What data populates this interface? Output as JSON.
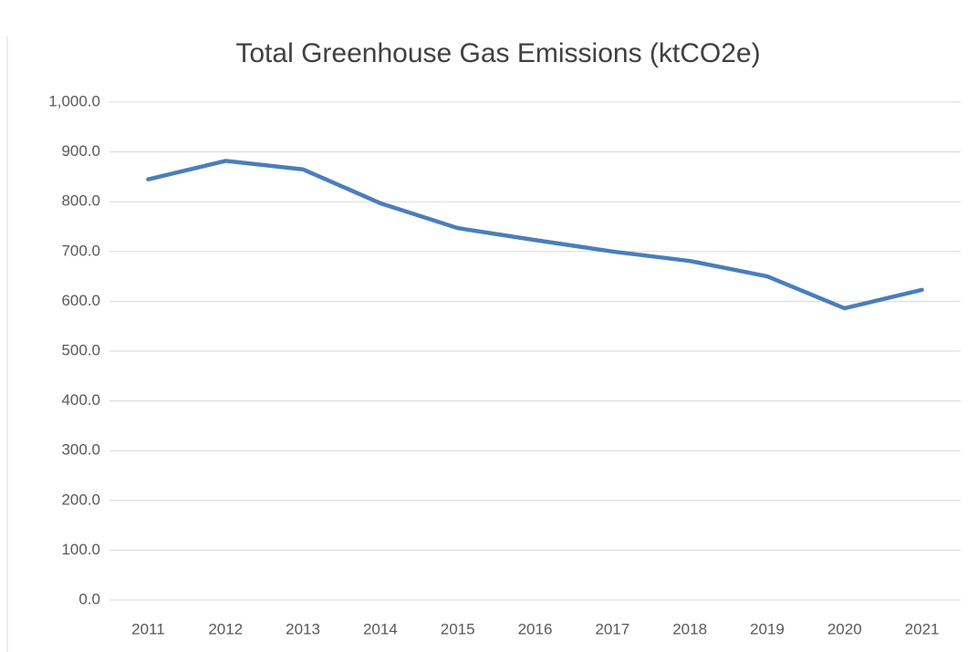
{
  "chart_data": {
    "type": "line",
    "title": "Total Greenhouse Gas Emissions (ktCO2e)",
    "categories": [
      "2011",
      "2012",
      "2013",
      "2014",
      "2015",
      "2016",
      "2017",
      "2018",
      "2019",
      "2020",
      "2021"
    ],
    "series": [
      {
        "name": "Total Greenhouse Gas Emissions",
        "color": "#4a7ebb",
        "values": [
          845,
          882,
          865,
          797,
          747,
          723,
          700,
          681,
          650,
          586,
          623
        ]
      }
    ],
    "ylim": [
      0,
      1000
    ],
    "yticks": [
      {
        "value": 0,
        "label": "0.0"
      },
      {
        "value": 100,
        "label": "100.0"
      },
      {
        "value": 200,
        "label": "200.0"
      },
      {
        "value": 300,
        "label": "300.0"
      },
      {
        "value": 400,
        "label": "400.0"
      },
      {
        "value": 500,
        "label": "500.0"
      },
      {
        "value": 600,
        "label": "600.0"
      },
      {
        "value": 700,
        "label": "700.0"
      },
      {
        "value": 800,
        "label": "800.0"
      },
      {
        "value": 900,
        "label": "900.0"
      },
      {
        "value": 1000,
        "label": "1,000.0"
      }
    ],
    "grid": true
  }
}
